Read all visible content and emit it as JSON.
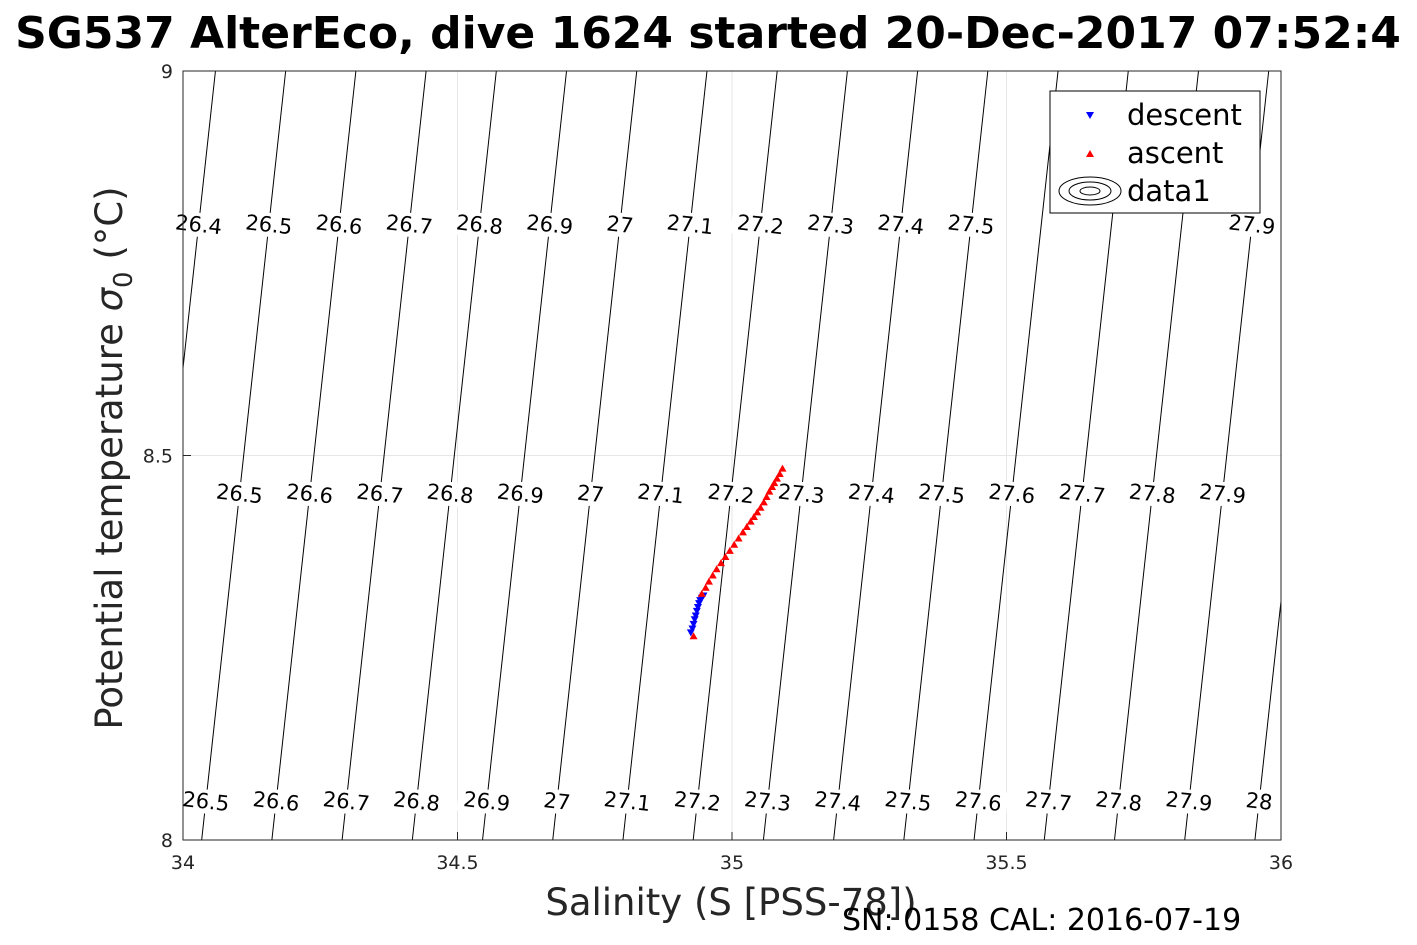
{
  "title": "SG537 AlterEco, dive 1624 started 20-Dec-2017 07:52:4",
  "footer": "SN: 0158  CAL: 2016-07-19",
  "chart_data": {
    "type": "scatter",
    "xlabel": "Salinity (S [PSS-78])",
    "ylabel_prefix": "Potential temperature ",
    "ylabel_sigma": "σ",
    "ylabel_sub": "0",
    "ylabel_suffix": " (°C)",
    "xlim": [
      34,
      36
    ],
    "ylim": [
      8,
      9
    ],
    "xticks": [
      "34",
      "34.5",
      "35",
      "35.5",
      "36"
    ],
    "yticks": [
      "8",
      "8.5",
      "9"
    ],
    "grid": true,
    "legend_position": "top-right",
    "colors": {
      "descent": "#0000ff",
      "ascent": "#ff0000",
      "contour": "#000000",
      "grid": "#e6e6e6"
    },
    "contours": {
      "levels": [
        "26.4",
        "26.5",
        "26.6",
        "26.7",
        "26.8",
        "26.9",
        "27",
        "27.1",
        "27.2",
        "27.3",
        "27.4",
        "27.5",
        "27.6",
        "27.7",
        "27.8",
        "27.9",
        "28"
      ],
      "labels_row_top": [
        "26.4",
        "26.5",
        "26.6",
        "26.7",
        "26.8",
        "26.9",
        "27",
        "27.1",
        "27.2",
        "27.3",
        "27.4",
        "27.5",
        "27.9"
      ],
      "labels_row_mid": [
        "26.5",
        "26.6",
        "26.7",
        "26.8",
        "26.9",
        "27",
        "27.1",
        "27.2",
        "27.3",
        "27.4",
        "27.5",
        "27.6",
        "27.7",
        "27.8",
        "27.9"
      ],
      "labels_row_bottom": [
        "26.5",
        "26.6",
        "26.7",
        "26.8",
        "26.9",
        "27",
        "27.1",
        "27.2",
        "27.3",
        "27.4",
        "27.5",
        "27.6",
        "27.7",
        "27.8",
        "27.9",
        "28"
      ]
    },
    "series": [
      {
        "name": "descent",
        "marker": "triangle-down",
        "x": [
          34.925,
          34.928,
          34.93,
          34.932,
          34.934,
          34.936,
          34.938,
          34.94,
          34.942,
          34.945,
          34.948
        ],
        "y": [
          8.27,
          8.275,
          8.281,
          8.287,
          8.292,
          8.298,
          8.303,
          8.308,
          8.312,
          8.315,
          8.318
        ]
      },
      {
        "name": "ascent",
        "marker": "triangle-up",
        "x": [
          34.93,
          34.945,
          34.952,
          34.958,
          34.965,
          34.972,
          34.98,
          34.988,
          34.996,
          35.004,
          35.012,
          35.02,
          35.027,
          35.034,
          35.04,
          35.046,
          35.052,
          35.058,
          35.063,
          35.068,
          35.073,
          35.077,
          35.082,
          35.087,
          35.092
        ],
        "y": [
          8.265,
          8.32,
          8.328,
          8.336,
          8.344,
          8.352,
          8.36,
          8.368,
          8.376,
          8.384,
          8.392,
          8.4,
          8.407,
          8.414,
          8.42,
          8.426,
          8.432,
          8.439,
          8.446,
          8.453,
          8.459,
          8.464,
          8.47,
          8.476,
          8.483
        ]
      },
      {
        "name": "data1",
        "marker": "contour"
      }
    ]
  }
}
